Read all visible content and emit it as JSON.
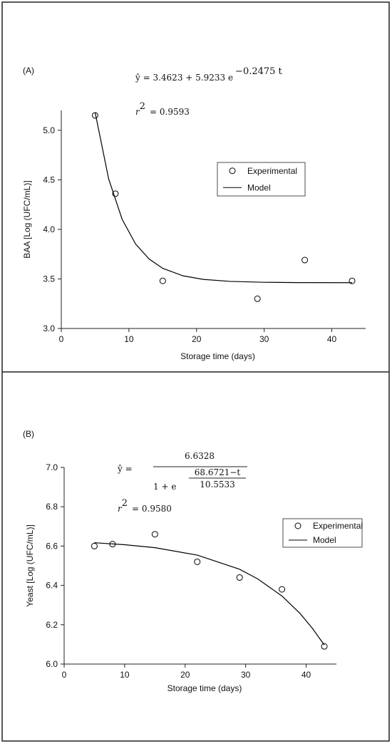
{
  "chart_data": [
    {
      "type": "scatter",
      "panel_label": "(A)",
      "equation": {
        "lhs": "ŷ = 3.4623 + 5.9233 e",
        "exponent": "−0.2475 t"
      },
      "r_squared": {
        "symbol": "r",
        "power": "2",
        "rhs": "= 0.9593"
      },
      "xlabel": "Storage time (days)",
      "ylabel": "BAA [Log (UFC/mL)]",
      "xlim": [
        0,
        45
      ],
      "ylim": [
        3.0,
        5.2
      ],
      "xticks": [
        0,
        10,
        20,
        30,
        40
      ],
      "yticks": [
        {
          "value": 3,
          "label": "3.0"
        },
        3.5,
        {
          "value": 4,
          "label": "4.0"
        },
        4.5,
        {
          "value": 5,
          "label": "5.0"
        }
      ],
      "legend": "upper right",
      "series": [
        {
          "name": "Experimental",
          "mode": "markers",
          "color": "#000000",
          "x": [
            5,
            8,
            15,
            29,
            36,
            43
          ],
          "values": [
            5.15,
            4.36,
            3.48,
            3.3,
            3.69,
            3.48
          ]
        },
        {
          "name": "Model",
          "mode": "line",
          "color": "#000000",
          "x": [
            5,
            7,
            9,
            11,
            13,
            15,
            18,
            21,
            25,
            30,
            35,
            43
          ],
          "values": [
            5.181,
            4.51,
            4.101,
            3.851,
            3.7,
            3.607,
            3.531,
            3.495,
            3.475,
            3.466,
            3.463,
            3.462
          ]
        }
      ]
    },
    {
      "type": "scatter",
      "panel_label": "(B)",
      "equation": {
        "lhs": "ŷ =",
        "numerator": "6.6328",
        "denominator": "1 + e",
        "exp_numerator": "68.6721−t",
        "exp_denominator": "10.5533"
      },
      "r_squared": {
        "symbol": "r",
        "power": "2",
        "rhs": "= 0.9580"
      },
      "xlabel": "Storage time (days)",
      "ylabel": "Yeast [Log (UFC/mL)]",
      "xlim": [
        0,
        45
      ],
      "ylim": [
        6.0,
        7.0
      ],
      "xticks": [
        0,
        10,
        20,
        30,
        40
      ],
      "yticks": [
        {
          "value": 6,
          "label": "6.0"
        },
        6.2,
        6.4,
        6.6,
        6.8,
        {
          "value": 7,
          "label": "7.0"
        }
      ],
      "legend": "upper right",
      "series": [
        {
          "name": "Experimental",
          "mode": "markers",
          "color": "#000000",
          "x": [
            5,
            8,
            15,
            22,
            29,
            36,
            43
          ],
          "values": [
            6.6,
            6.61,
            6.66,
            6.52,
            6.44,
            6.38,
            6.09
          ]
        },
        {
          "name": "Model",
          "mode": "line",
          "color": "#000000",
          "x": [
            5,
            10,
            15,
            22,
            29,
            32,
            36,
            39,
            41,
            43
          ],
          "values": [
            6.617,
            6.607,
            6.592,
            6.554,
            6.482,
            6.433,
            6.346,
            6.257,
            6.183,
            6.097
          ]
        }
      ]
    }
  ]
}
